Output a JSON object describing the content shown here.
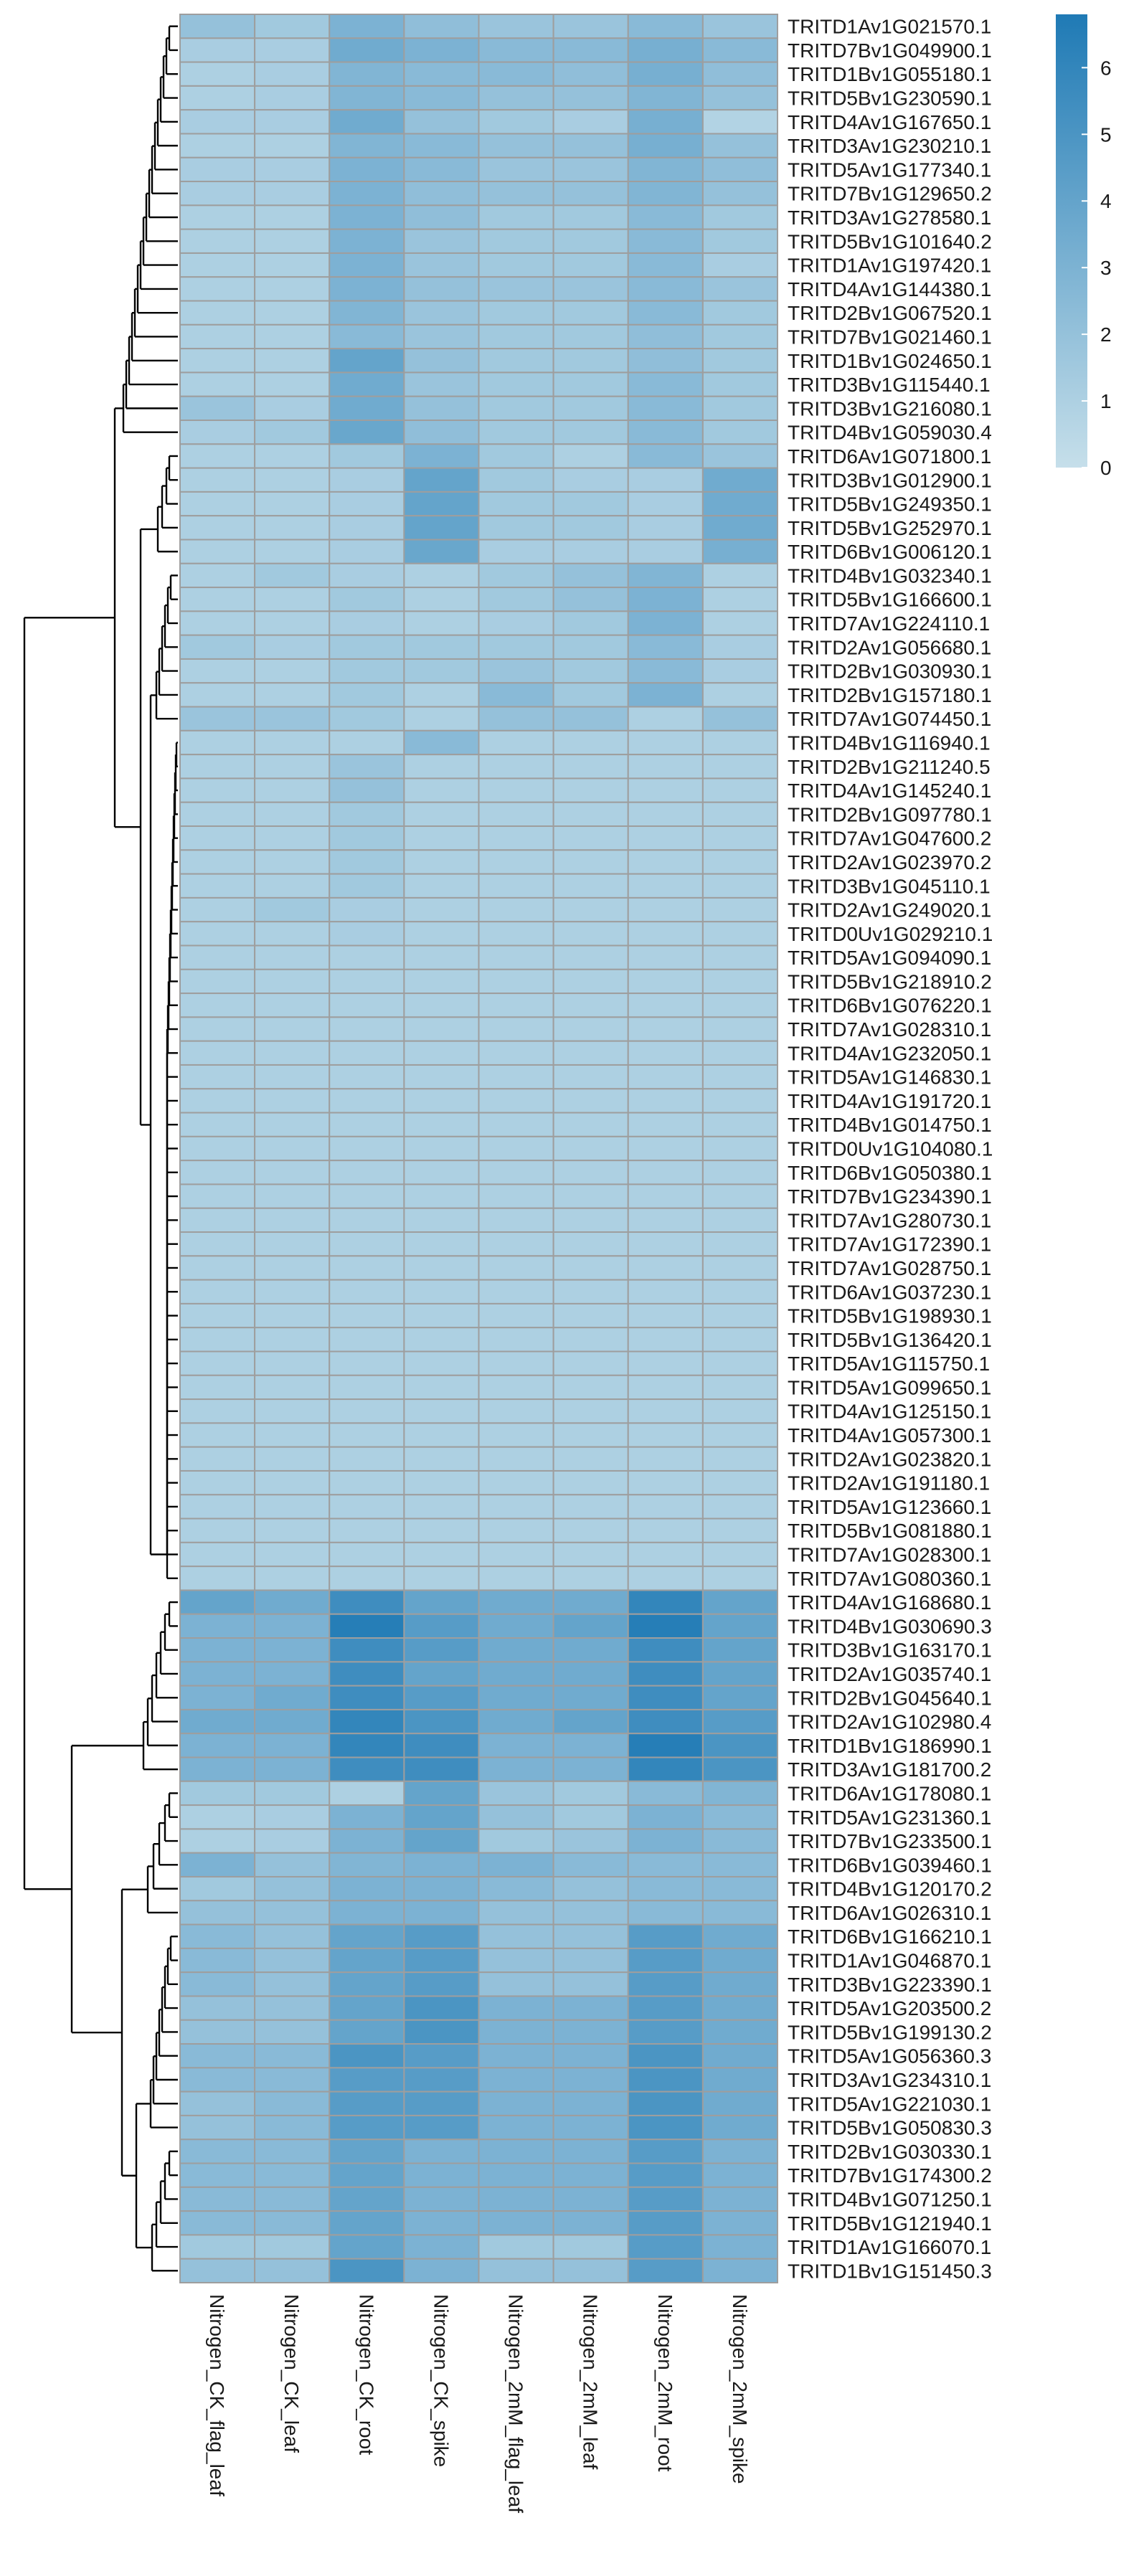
{
  "chart_data": {
    "type": "heatmap",
    "columns": [
      "Nitrogen_CK_flag_leaf",
      "Nitrogen_CK_leaf",
      "Nitrogen_CK_root",
      "Nitrogen_CK_spike",
      "Nitrogen_2mM_flag_leaf",
      "Nitrogen_2mM_leaf",
      "Nitrogen_2mM_root",
      "Nitrogen_2mM_spike"
    ],
    "rows": [
      "TRITD1Av1G021570.1",
      "TRITD7Bv1G049900.1",
      "TRITD1Bv1G055180.1",
      "TRITD5Bv1G230590.1",
      "TRITD4Av1G167650.1",
      "TRITD3Av1G230210.1",
      "TRITD5Av1G177340.1",
      "TRITD7Bv1G129650.2",
      "TRITD3Av1G278580.1",
      "TRITD5Bv1G101640.2",
      "TRITD1Av1G197420.1",
      "TRITD4Av1G144380.1",
      "TRITD2Bv1G067520.1",
      "TRITD7Bv1G021460.1",
      "TRITD1Bv1G024650.1",
      "TRITD3Bv1G115440.1",
      "TRITD3Bv1G216080.1",
      "TRITD4Bv1G059030.4",
      "TRITD6Av1G071800.1",
      "TRITD3Bv1G012900.1",
      "TRITD5Bv1G249350.1",
      "TRITD5Bv1G252970.1",
      "TRITD6Bv1G006120.1",
      "TRITD4Bv1G032340.1",
      "TRITD5Bv1G166600.1",
      "TRITD7Av1G224110.1",
      "TRITD2Av1G056680.1",
      "TRITD2Bv1G030930.1",
      "TRITD2Bv1G157180.1",
      "TRITD7Av1G074450.1",
      "TRITD4Bv1G116940.1",
      "TRITD2Bv1G211240.5",
      "TRITD4Av1G145240.1",
      "TRITD2Bv1G097780.1",
      "TRITD7Av1G047600.2",
      "TRITD2Av1G023970.2",
      "TRITD3Bv1G045110.1",
      "TRITD2Av1G249020.1",
      "TRITD0Uv1G029210.1",
      "TRITD5Av1G094090.1",
      "TRITD5Bv1G218910.2",
      "TRITD6Bv1G076220.1",
      "TRITD7Av1G028310.1",
      "TRITD4Av1G232050.1",
      "TRITD5Av1G146830.1",
      "TRITD4Av1G191720.1",
      "TRITD4Bv1G014750.1",
      "TRITD0Uv1G104080.1",
      "TRITD6Bv1G050380.1",
      "TRITD7Bv1G234390.1",
      "TRITD7Av1G280730.1",
      "TRITD7Av1G172390.1",
      "TRITD7Av1G028750.1",
      "TRITD6Av1G037230.1",
      "TRITD5Bv1G198930.1",
      "TRITD5Bv1G136420.1",
      "TRITD5Av1G115750.1",
      "TRITD5Av1G099650.1",
      "TRITD4Av1G125150.1",
      "TRITD4Av1G057300.1",
      "TRITD2Av1G023820.1",
      "TRITD2Av1G191180.1",
      "TRITD5Av1G123660.1",
      "TRITD5Bv1G081880.1",
      "TRITD7Av1G028300.1",
      "TRITD7Av1G080360.1",
      "TRITD4Av1G168680.1",
      "TRITD4Bv1G030690.3",
      "TRITD3Bv1G163170.1",
      "TRITD2Av1G035740.1",
      "TRITD2Bv1G045640.1",
      "TRITD2Av1G102980.4",
      "TRITD1Bv1G186990.1",
      "TRITD3Av1G181700.2",
      "TRITD6Av1G178080.1",
      "TRITD5Av1G231360.1",
      "TRITD7Bv1G233500.1",
      "TRITD6Bv1G039460.1",
      "TRITD4Bv1G120170.2",
      "TRITD6Av1G026310.1",
      "TRITD6Bv1G166210.1",
      "TRITD1Av1G046870.1",
      "TRITD3Bv1G223390.1",
      "TRITD5Av1G203500.2",
      "TRITD5Bv1G199130.2",
      "TRITD5Av1G056360.3",
      "TRITD3Av1G234310.1",
      "TRITD5Av1G221030.1",
      "TRITD5Bv1G050830.3",
      "TRITD2Bv1G030330.1",
      "TRITD7Bv1G174300.2",
      "TRITD4Bv1G071250.1",
      "TRITD5Bv1G121940.1",
      "TRITD1Av1G166070.1",
      "TRITD1Bv1G151450.3"
    ],
    "values": [
      [
        2.0,
        1.5,
        3.0,
        2.2,
        1.8,
        1.8,
        2.5,
        1.8
      ],
      [
        1.2,
        1.2,
        3.5,
        3.0,
        2.5,
        2.5,
        3.2,
        2.5
      ],
      [
        1.0,
        1.2,
        2.8,
        2.5,
        2.5,
        2.2,
        3.2,
        2.2
      ],
      [
        1.0,
        1.2,
        2.8,
        2.5,
        2.0,
        2.0,
        2.8,
        2.0
      ],
      [
        1.2,
        1.2,
        3.5,
        2.0,
        1.5,
        1.2,
        3.2,
        0.8
      ],
      [
        1.0,
        1.0,
        2.8,
        2.5,
        2.0,
        2.0,
        3.2,
        2.0
      ],
      [
        1.2,
        1.2,
        3.0,
        2.5,
        1.8,
        1.8,
        2.8,
        2.2
      ],
      [
        1.2,
        1.2,
        3.0,
        2.2,
        2.0,
        2.0,
        2.8,
        2.0
      ],
      [
        1.0,
        1.0,
        3.0,
        2.2,
        1.5,
        1.5,
        2.5,
        1.5
      ],
      [
        1.0,
        1.0,
        3.0,
        1.8,
        1.5,
        1.5,
        2.5,
        1.5
      ],
      [
        1.0,
        1.0,
        3.0,
        1.8,
        1.5,
        1.5,
        2.5,
        1.2
      ],
      [
        1.0,
        1.0,
        3.0,
        2.0,
        1.8,
        1.8,
        2.5,
        1.8
      ],
      [
        1.0,
        1.0,
        2.8,
        1.8,
        1.5,
        1.5,
        2.5,
        1.5
      ],
      [
        1.0,
        1.0,
        2.5,
        1.8,
        1.5,
        1.5,
        2.2,
        1.5
      ],
      [
        1.0,
        1.0,
        4.0,
        2.0,
        1.5,
        1.5,
        2.2,
        1.5
      ],
      [
        1.0,
        1.0,
        3.5,
        1.8,
        1.5,
        1.5,
        2.5,
        1.5
      ],
      [
        1.8,
        1.2,
        3.5,
        2.0,
        1.5,
        1.5,
        2.5,
        1.5
      ],
      [
        1.2,
        1.5,
        3.8,
        2.2,
        1.5,
        1.5,
        2.5,
        1.5
      ],
      [
        1.0,
        1.0,
        1.5,
        3.0,
        1.5,
        1.0,
        2.5,
        1.8
      ],
      [
        1.0,
        1.0,
        1.2,
        4.0,
        1.5,
        1.2,
        1.2,
        3.5
      ],
      [
        1.0,
        1.0,
        1.2,
        4.0,
        1.5,
        1.5,
        1.2,
        3.5
      ],
      [
        1.0,
        1.0,
        1.2,
        4.0,
        1.5,
        1.5,
        1.2,
        3.5
      ],
      [
        1.0,
        1.0,
        1.2,
        3.8,
        1.2,
        1.2,
        1.2,
        3.2
      ],
      [
        1.0,
        1.5,
        1.2,
        1.0,
        1.5,
        2.0,
        2.8,
        1.0
      ],
      [
        1.0,
        1.0,
        1.5,
        1.0,
        1.5,
        2.0,
        3.0,
        1.0
      ],
      [
        1.0,
        1.0,
        1.2,
        1.0,
        1.2,
        1.5,
        3.0,
        1.0
      ],
      [
        1.5,
        1.2,
        1.5,
        1.5,
        1.5,
        1.5,
        2.5,
        1.2
      ],
      [
        1.0,
        1.0,
        1.5,
        1.5,
        1.8,
        1.5,
        2.5,
        1.2
      ],
      [
        1.0,
        1.0,
        1.5,
        1.0,
        2.5,
        1.5,
        3.0,
        1.0
      ],
      [
        1.8,
        1.8,
        1.5,
        1.0,
        2.0,
        2.0,
        1.0,
        2.0
      ],
      [
        1.0,
        1.0,
        1.0,
        2.5,
        1.0,
        1.0,
        1.0,
        1.0
      ],
      [
        1.0,
        1.0,
        1.8,
        1.0,
        1.0,
        1.0,
        1.0,
        1.0
      ],
      [
        1.0,
        1.0,
        2.0,
        1.0,
        1.0,
        1.0,
        1.0,
        1.0
      ],
      [
        1.0,
        1.0,
        1.5,
        1.0,
        1.0,
        1.0,
        1.0,
        1.0
      ],
      [
        1.0,
        1.0,
        1.5,
        1.0,
        1.0,
        1.0,
        1.0,
        1.0
      ],
      [
        1.0,
        1.0,
        1.5,
        1.0,
        1.0,
        1.0,
        1.0,
        1.0
      ],
      [
        1.0,
        1.0,
        1.5,
        1.0,
        1.0,
        1.0,
        1.0,
        1.0
      ],
      [
        1.0,
        1.5,
        1.2,
        1.0,
        1.0,
        1.0,
        1.0,
        1.0
      ],
      [
        1.0,
        1.0,
        1.2,
        1.0,
        1.0,
        1.0,
        1.0,
        1.0
      ],
      [
        1.0,
        1.0,
        1.0,
        1.0,
        1.0,
        1.0,
        1.0,
        1.0
      ],
      [
        1.0,
        1.0,
        1.0,
        1.0,
        1.0,
        1.0,
        1.0,
        1.0
      ],
      [
        1.0,
        1.0,
        1.0,
        1.0,
        1.0,
        1.0,
        1.0,
        1.0
      ],
      [
        1.0,
        1.0,
        1.0,
        1.0,
        1.0,
        1.0,
        1.0,
        1.0
      ],
      [
        1.0,
        1.0,
        1.0,
        1.0,
        1.0,
        1.0,
        1.0,
        1.0
      ],
      [
        1.0,
        1.0,
        1.0,
        1.0,
        1.0,
        1.0,
        1.0,
        1.0
      ],
      [
        1.0,
        1.0,
        1.0,
        1.0,
        1.0,
        1.0,
        1.0,
        1.0
      ],
      [
        1.0,
        1.0,
        1.0,
        1.0,
        1.0,
        1.0,
        1.0,
        1.0
      ],
      [
        1.0,
        1.0,
        1.0,
        1.0,
        1.0,
        1.0,
        1.0,
        1.0
      ],
      [
        1.0,
        1.0,
        1.0,
        1.0,
        1.0,
        1.0,
        1.0,
        1.0
      ],
      [
        1.0,
        1.0,
        1.0,
        1.0,
        1.0,
        1.0,
        1.0,
        1.0
      ],
      [
        1.0,
        1.0,
        1.0,
        1.0,
        1.0,
        1.0,
        1.0,
        1.0
      ],
      [
        1.0,
        1.0,
        1.0,
        1.0,
        1.0,
        1.0,
        1.0,
        1.0
      ],
      [
        1.0,
        1.0,
        1.0,
        1.0,
        1.0,
        1.0,
        1.0,
        1.0
      ],
      [
        1.0,
        1.0,
        1.0,
        1.0,
        1.0,
        1.0,
        1.0,
        1.0
      ],
      [
        1.0,
        1.0,
        1.0,
        1.0,
        1.0,
        1.0,
        1.0,
        1.0
      ],
      [
        1.0,
        1.0,
        1.0,
        1.0,
        1.0,
        1.0,
        1.0,
        1.0
      ],
      [
        1.0,
        1.0,
        1.0,
        1.0,
        1.0,
        1.0,
        1.0,
        1.0
      ],
      [
        1.0,
        1.0,
        1.0,
        1.0,
        1.0,
        1.0,
        1.0,
        1.0
      ],
      [
        1.0,
        1.0,
        1.0,
        1.0,
        1.0,
        1.0,
        1.0,
        1.0
      ],
      [
        1.0,
        1.0,
        1.0,
        1.0,
        1.0,
        1.0,
        1.0,
        1.0
      ],
      [
        1.0,
        1.0,
        1.0,
        1.0,
        1.0,
        1.0,
        1.0,
        1.0
      ],
      [
        1.0,
        1.0,
        1.0,
        1.0,
        1.0,
        1.0,
        1.0,
        1.0
      ],
      [
        1.0,
        1.0,
        1.0,
        1.0,
        1.0,
        1.0,
        1.0,
        1.0
      ],
      [
        1.0,
        1.0,
        1.0,
        1.0,
        1.0,
        1.0,
        1.0,
        1.0
      ],
      [
        1.0,
        1.0,
        1.0,
        1.0,
        1.0,
        1.0,
        1.0,
        1.0
      ],
      [
        1.0,
        1.0,
        1.0,
        1.0,
        1.0,
        1.0,
        1.0,
        1.0
      ],
      [
        4.0,
        3.5,
        5.5,
        4.0,
        3.5,
        3.5,
        6.0,
        4.0
      ],
      [
        3.0,
        3.0,
        6.5,
        4.5,
        3.5,
        4.0,
        6.5,
        4.0
      ],
      [
        3.0,
        3.0,
        5.5,
        4.5,
        3.5,
        3.5,
        5.5,
        4.0
      ],
      [
        3.0,
        3.0,
        5.5,
        4.0,
        3.5,
        3.5,
        5.5,
        4.0
      ],
      [
        3.0,
        3.5,
        5.5,
        4.5,
        3.5,
        3.5,
        5.5,
        4.0
      ],
      [
        3.5,
        3.5,
        6.0,
        5.0,
        3.5,
        4.0,
        5.5,
        4.5
      ],
      [
        3.0,
        3.0,
        6.0,
        5.5,
        3.0,
        3.0,
        6.5,
        5.0
      ],
      [
        3.0,
        3.0,
        5.5,
        5.5,
        3.0,
        3.0,
        6.0,
        5.0
      ],
      [
        1.5,
        1.5,
        1.0,
        4.0,
        1.8,
        1.5,
        2.5,
        2.8
      ],
      [
        1.0,
        1.2,
        3.0,
        4.0,
        2.0,
        1.5,
        3.0,
        2.5
      ],
      [
        1.0,
        1.2,
        3.0,
        4.0,
        1.5,
        1.8,
        3.0,
        2.5
      ],
      [
        3.0,
        2.0,
        2.8,
        3.0,
        3.0,
        2.5,
        2.5,
        2.5
      ],
      [
        1.5,
        2.0,
        3.0,
        3.0,
        2.5,
        2.0,
        2.5,
        2.5
      ],
      [
        2.0,
        2.0,
        3.0,
        3.0,
        2.0,
        2.0,
        2.5,
        2.5
      ],
      [
        2.5,
        2.0,
        4.0,
        4.5,
        2.0,
        2.0,
        4.5,
        3.5
      ],
      [
        2.5,
        2.0,
        4.0,
        4.5,
        2.0,
        2.0,
        4.5,
        3.5
      ],
      [
        2.5,
        2.0,
        4.0,
        4.5,
        2.0,
        2.0,
        4.5,
        3.5
      ],
      [
        2.0,
        2.0,
        4.0,
        5.0,
        3.0,
        3.0,
        4.5,
        3.5
      ],
      [
        2.0,
        2.0,
        4.0,
        5.0,
        3.0,
        3.0,
        4.5,
        3.5
      ],
      [
        2.5,
        2.5,
        5.0,
        4.5,
        3.0,
        3.0,
        5.0,
        3.5
      ],
      [
        2.5,
        2.5,
        4.5,
        4.5,
        3.0,
        3.0,
        5.0,
        3.5
      ],
      [
        2.0,
        2.5,
        4.5,
        4.5,
        3.0,
        3.0,
        5.0,
        3.5
      ],
      [
        2.0,
        2.5,
        4.5,
        4.5,
        3.0,
        3.0,
        5.0,
        3.5
      ],
      [
        2.5,
        2.5,
        4.0,
        3.0,
        3.0,
        3.0,
        4.5,
        3.0
      ],
      [
        2.5,
        2.5,
        4.0,
        3.0,
        3.0,
        3.0,
        4.5,
        3.0
      ],
      [
        2.5,
        2.5,
        4.0,
        3.0,
        3.0,
        3.0,
        4.5,
        3.0
      ],
      [
        2.5,
        2.5,
        4.0,
        3.0,
        3.0,
        3.0,
        4.5,
        3.0
      ],
      [
        1.5,
        1.5,
        4.0,
        3.0,
        1.5,
        1.5,
        4.5,
        3.0
      ],
      [
        2.0,
        2.0,
        5.0,
        3.0,
        2.0,
        2.0,
        4.5,
        3.0
      ]
    ],
    "legend": {
      "ticks": [
        0,
        1,
        2,
        3,
        4,
        5,
        6
      ],
      "range": [
        0,
        6.8
      ],
      "placement": "top-right"
    },
    "colors": {
      "low": "#c6dfea",
      "high": "#1f7ab5",
      "cell_border": "#9e9e9e",
      "tree": "#000000"
    }
  }
}
